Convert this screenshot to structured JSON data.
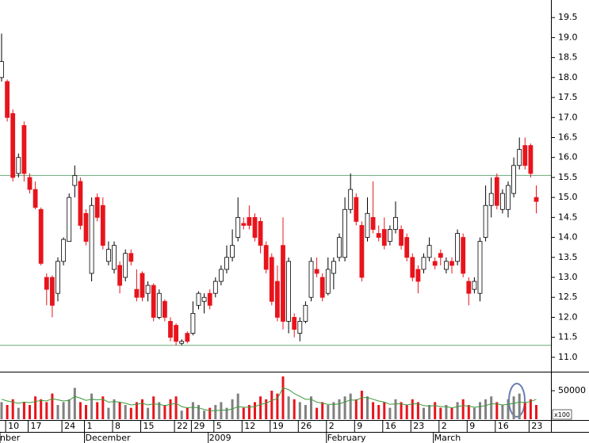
{
  "chart_data": {
    "type": "candlestick",
    "categories": [
      null,
      "10",
      null,
      null,
      null,
      "17",
      null,
      null,
      null,
      null,
      null,
      "24",
      null,
      null,
      null,
      "1",
      null,
      null,
      null,
      null,
      "8",
      null,
      null,
      null,
      null,
      "15",
      null,
      null,
      null,
      null,
      null,
      "22",
      null,
      null,
      "29",
      null,
      null,
      null,
      "5",
      null,
      null,
      null,
      null,
      "12",
      null,
      null,
      null,
      null,
      "19",
      null,
      null,
      null,
      null,
      "26",
      null,
      null,
      null,
      null,
      "2",
      null,
      null,
      null,
      null,
      "9",
      null,
      null,
      null,
      null,
      "16",
      null,
      null,
      null,
      null,
      "23",
      null,
      null,
      null,
      null,
      "2",
      null,
      null,
      null,
      null,
      "9",
      null,
      null,
      null,
      null,
      "16",
      null,
      null,
      null,
      null,
      null,
      "23",
      null
    ],
    "category_groups": [
      "nber",
      null,
      null,
      null,
      null,
      null,
      null,
      null,
      null,
      null,
      null,
      null,
      null,
      null,
      null,
      "December",
      null,
      null,
      null,
      null,
      null,
      null,
      null,
      null,
      null,
      null,
      null,
      null,
      null,
      null,
      null,
      null,
      null,
      null,
      null,
      null,
      null,
      "2009",
      null,
      null,
      null,
      null,
      null,
      null,
      null,
      null,
      null,
      null,
      null,
      null,
      null,
      null,
      null,
      null,
      null,
      null,
      null,
      null,
      "February",
      null,
      null,
      null,
      null,
      null,
      null,
      null,
      null,
      null,
      null,
      null,
      null,
      null,
      null,
      null,
      null,
      null,
      null,
      "March",
      null,
      null,
      null,
      null,
      null,
      null,
      null,
      null,
      null,
      null,
      null,
      null,
      null,
      null,
      null,
      null,
      null
    ],
    "open": [
      18.0,
      17.9,
      17.1,
      15.6,
      16.8,
      15.5,
      15.2,
      14.7,
      13.0,
      13.0,
      12.6,
      13.4,
      13.9,
      15.3,
      15.4,
      14.6,
      13.1,
      15.0,
      14.8,
      13.4,
      13.2,
      13.3,
      13.0,
      13.6,
      12.7,
      13.1,
      12.6,
      12.8,
      12.0,
      12.4,
      11.9,
      11.8,
      11.35,
      11.6,
      11.6,
      12.3,
      12.4,
      12.6,
      12.6,
      12.9,
      13.2,
      13.5,
      14.0,
      14.35,
      14.5,
      14.5,
      14.4,
      13.8,
      13.5,
      12.9,
      13.8,
      11.9,
      12.0,
      11.6,
      11.9,
      12.5,
      13.2,
      13.0,
      12.6,
      13.1,
      13.5,
      13.5,
      14.7,
      15.0,
      14.3,
      14.0,
      14.5,
      14.1,
      14.2,
      13.9,
      14.2,
      14.2,
      14.0,
      13.5,
      13.2,
      13.2,
      13.5,
      13.4,
      13.6,
      13.2,
      13.4,
      13.4,
      14.0,
      12.9,
      12.7,
      12.6,
      14.0,
      14.8,
      15.5,
      14.7,
      14.7,
      15.1,
      15.8,
      16.3,
      16.3,
      15.0
    ],
    "high": [
      19.1,
      17.95,
      17.2,
      16.1,
      16.9,
      15.6,
      15.4,
      14.75,
      13.1,
      13.05,
      13.5,
      14.0,
      15.1,
      15.8,
      15.5,
      14.7,
      15.0,
      15.1,
      15.0,
      13.9,
      13.9,
      13.4,
      13.7,
      13.7,
      13.2,
      13.15,
      12.9,
      12.85,
      12.7,
      12.45,
      12.0,
      11.85,
      11.45,
      11.65,
      12.4,
      12.65,
      12.6,
      12.7,
      13.0,
      13.3,
      13.8,
      14.2,
      15.0,
      14.5,
      14.8,
      14.6,
      14.5,
      13.9,
      13.6,
      13.3,
      14.5,
      13.5,
      12.1,
      12.0,
      12.4,
      13.5,
      13.5,
      13.1,
      13.5,
      13.5,
      14.1,
      15.0,
      15.6,
      15.1,
      14.4,
      15.0,
      15.4,
      14.3,
      14.5,
      14.3,
      14.9,
      14.3,
      14.1,
      13.6,
      13.3,
      13.6,
      14.0,
      13.5,
      13.7,
      13.5,
      13.5,
      14.2,
      14.1,
      13.0,
      13.0,
      14.0,
      15.3,
      15.5,
      15.6,
      15.2,
      15.4,
      16.0,
      16.5,
      16.5,
      16.35,
      15.3
    ],
    "low": [
      17.9,
      16.9,
      15.4,
      15.5,
      15.4,
      15.1,
      14.7,
      13.3,
      12.3,
      12.0,
      12.4,
      13.3,
      13.9,
      15.0,
      14.2,
      13.8,
      12.9,
      14.4,
      13.7,
      13.3,
      13.1,
      12.6,
      12.9,
      13.3,
      12.4,
      12.4,
      12.4,
      11.9,
      11.95,
      11.9,
      11.4,
      11.3,
      11.3,
      11.35,
      11.55,
      12.2,
      12.1,
      12.2,
      12.5,
      12.8,
      13.1,
      13.4,
      13.9,
      14.2,
      14.2,
      13.9,
      13.6,
      13.1,
      12.3,
      11.9,
      11.7,
      11.6,
      11.5,
      11.4,
      11.85,
      12.4,
      13.0,
      12.4,
      12.55,
      12.7,
      13.4,
      13.4,
      14.6,
      14.3,
      12.9,
      13.9,
      14.1,
      13.9,
      13.7,
      13.8,
      14.1,
      13.7,
      13.4,
      12.9,
      12.6,
      13.1,
      13.4,
      13.2,
      13.3,
      13.1,
      13.1,
      13.3,
      13.0,
      12.3,
      12.6,
      12.4,
      13.9,
      14.5,
      14.7,
      14.6,
      14.5,
      15.0,
      15.7,
      15.7,
      15.5,
      14.6
    ],
    "close": [
      18.4,
      17.0,
      15.5,
      16.0,
      15.6,
      15.2,
      14.75,
      13.35,
      12.7,
      12.3,
      13.4,
      13.95,
      15.0,
      15.55,
      14.3,
      13.9,
      14.8,
      14.5,
      13.8,
      13.7,
      13.8,
      12.8,
      13.6,
      13.4,
      12.5,
      12.5,
      12.8,
      12.0,
      12.6,
      12.0,
      11.5,
      11.4,
      11.4,
      11.4,
      12.1,
      12.6,
      12.5,
      12.3,
      12.9,
      13.2,
      13.5,
      13.8,
      14.5,
      14.3,
      14.3,
      14.0,
      13.8,
      13.2,
      12.4,
      12.0,
      11.9,
      13.4,
      11.7,
      11.9,
      12.3,
      13.4,
      13.1,
      12.5,
      13.2,
      13.4,
      14.0,
      14.7,
      15.2,
      14.4,
      13.0,
      14.6,
      14.2,
      14.0,
      13.8,
      14.2,
      14.5,
      13.8,
      13.5,
      13.0,
      12.9,
      13.5,
      13.8,
      13.3,
      13.5,
      13.4,
      13.3,
      14.1,
      13.1,
      12.6,
      12.9,
      13.9,
      14.8,
      15.1,
      14.8,
      15.1,
      15.3,
      15.8,
      16.2,
      15.8,
      15.6,
      14.9
    ],
    "volume": [
      30000,
      25000,
      35000,
      20000,
      30000,
      25000,
      40000,
      35000,
      30000,
      45000,
      25000,
      30000,
      35000,
      55000,
      30000,
      25000,
      45000,
      30000,
      40000,
      20000,
      35000,
      30000,
      25000,
      20000,
      30000,
      35000,
      20000,
      40000,
      30000,
      25000,
      35000,
      40000,
      15000,
      20000,
      30000,
      25000,
      15000,
      20000,
      25000,
      30000,
      20000,
      35000,
      45000,
      20000,
      25000,
      30000,
      40000,
      35000,
      50000,
      45000,
      75000,
      40000,
      35000,
      30000,
      25000,
      40000,
      20000,
      30000,
      25000,
      30000,
      35000,
      40000,
      45000,
      35000,
      50000,
      40000,
      30000,
      25000,
      30000,
      20000,
      35000,
      30000,
      25000,
      35000,
      30000,
      20000,
      25000,
      30000,
      20000,
      25000,
      20000,
      30000,
      35000,
      25000,
      20000,
      30000,
      35000,
      40000,
      30000,
      25000,
      35000,
      40000,
      45000,
      30000,
      35000,
      25000
    ],
    "volume_ma": [
      35000,
      32000,
      30000,
      28000,
      30000,
      29000,
      31000,
      33000,
      32000,
      36000,
      34000,
      32000,
      33000,
      40000,
      37000,
      33000,
      35000,
      34000,
      35000,
      30000,
      31000,
      30000,
      28000,
      25000,
      26000,
      28000,
      25000,
      27000,
      26000,
      24000,
      26000,
      28000,
      22000,
      20000,
      21000,
      20000,
      17000,
      15000,
      15000,
      16000,
      16000,
      18000,
      22000,
      21000,
      21000,
      22000,
      26000,
      28000,
      33000,
      36000,
      55000,
      52000,
      45000,
      40000,
      35000,
      35000,
      30000,
      28000,
      26000,
      26000,
      27000,
      30000,
      34000,
      33000,
      38000,
      38000,
      35000,
      32000,
      30000,
      26000,
      27000,
      27000,
      25000,
      27000,
      27000,
      24000,
      23000,
      24000,
      22000,
      22000,
      20000,
      22000,
      24000,
      23000,
      21000,
      22000,
      24000,
      27000,
      27000,
      25000,
      26000,
      28000,
      30000,
      29000,
      31000,
      35000
    ],
    "ylim": [
      10.7,
      19.94
    ],
    "yticks": [
      {
        "value": 11,
        "label": "11.0"
      },
      11.5,
      {
        "value": 12,
        "label": "12.0"
      },
      12.5,
      {
        "value": 13,
        "label": "13.0"
      },
      13.5,
      {
        "value": 14,
        "label": "14.0"
      },
      14.5,
      {
        "value": 15,
        "label": "15.0"
      },
      15.5,
      {
        "value": 16,
        "label": "16.0"
      },
      16.5,
      {
        "value": 17,
        "label": "17.0"
      },
      17.5,
      {
        "value": 18,
        "label": "18.0"
      },
      18.5,
      {
        "value": 19,
        "label": "19.0"
      },
      19.5
    ],
    "y2lim": [
      0,
      82000
    ],
    "y2ticks": [
      50000
    ],
    "y2_label": "x100",
    "hlines": [
      15.55,
      11.3
    ],
    "up_color": "#ffffff",
    "down_color": "#e8141c",
    "volume_up_color": "#808080",
    "volume_down_color": "#e8141c",
    "ma_color": "#3a9a3a",
    "hline_color": "#6aaa7a"
  }
}
